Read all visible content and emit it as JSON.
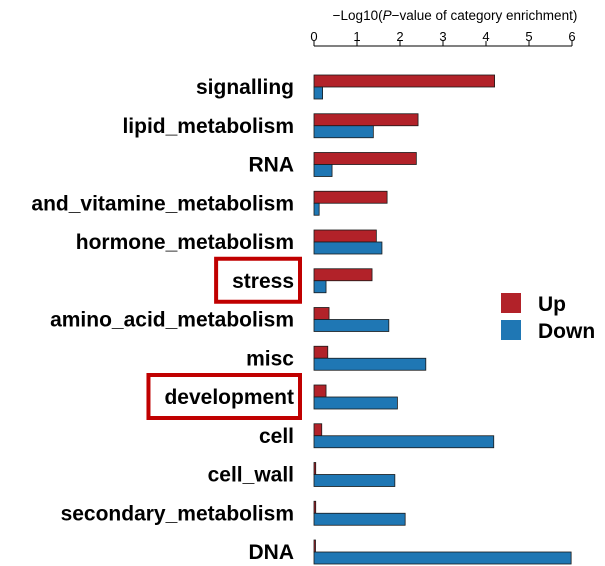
{
  "chart_data": {
    "type": "bar",
    "orientation": "horizontal",
    "x_axis_position": "top",
    "xlabel": {
      "prefix": "−Log10(",
      "italic": "P",
      "suffix": "−value of category enrichment)"
    },
    "xlim": [
      0,
      6
    ],
    "xticks": [
      "0",
      "1",
      "2",
      "3",
      "4",
      "5",
      "6"
    ],
    "categories": [
      "signalling",
      "lipid_metabolism",
      "RNA",
      "and_vitamine_metabolism",
      "hormone_metabolism",
      "stress",
      "amino_acid_metabolism",
      "misc",
      "development",
      "cell",
      "cell_wall",
      "secondary_metabolism",
      "DNA"
    ],
    "highlighted_categories": [
      "stress",
      "development"
    ],
    "highlight_color": "#c00000",
    "series": [
      {
        "name": "Up",
        "color": "#b22229",
        "values": [
          4.2,
          2.42,
          2.38,
          1.7,
          1.45,
          1.35,
          0.35,
          0.32,
          0.28,
          0.18,
          0.04,
          0.04,
          0.03
        ]
      },
      {
        "name": "Down",
        "color": "#1f77b4",
        "values": [
          0.2,
          1.38,
          0.42,
          0.12,
          1.58,
          0.28,
          1.74,
          2.6,
          1.94,
          4.18,
          1.88,
          2.12,
          5.98
        ]
      }
    ],
    "legend": {
      "position": "right"
    },
    "grid": false
  }
}
